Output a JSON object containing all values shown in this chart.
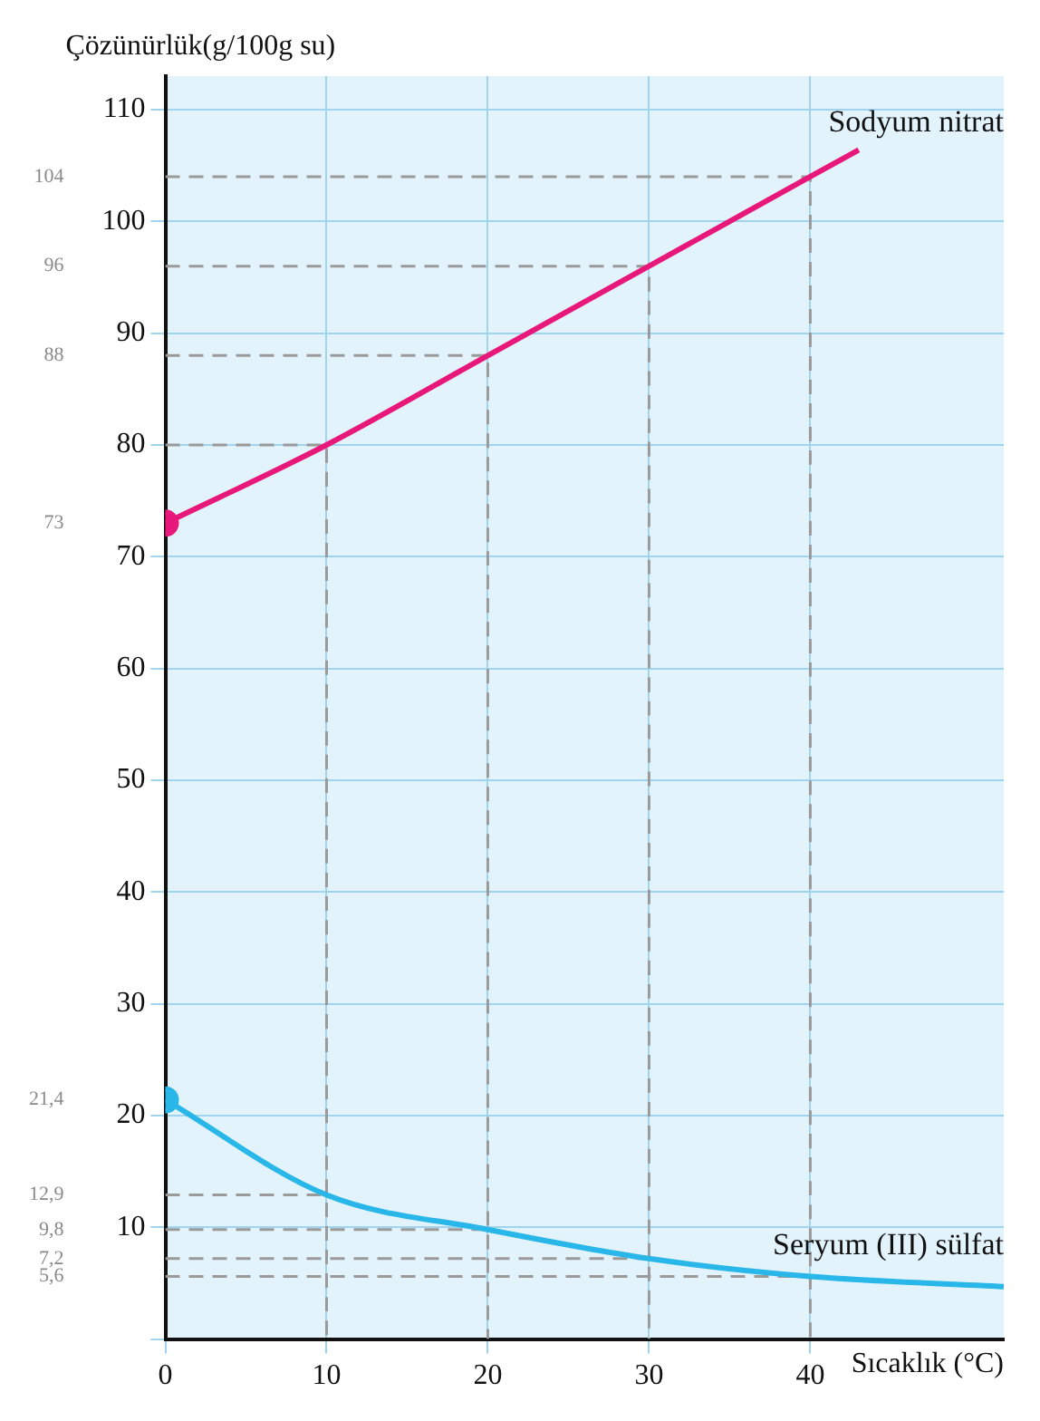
{
  "chart_data": {
    "type": "line",
    "xlabel": "Sıcaklık (°C)",
    "ylabel": "Çözünürlük(g/100g su)",
    "series": [
      {
        "name": "Sodyum nitrat",
        "color": "#e8177a",
        "x": [
          0,
          10,
          20,
          30,
          40,
          43
        ],
        "values": [
          73,
          80,
          88,
          96,
          104,
          106.4
        ]
      },
      {
        "name": "Seryum (III) sülfat",
        "color": "#29b6e8",
        "x": [
          0,
          10,
          20,
          30,
          40,
          52
        ],
        "values": [
          21.4,
          12.9,
          9.8,
          7.2,
          5.6,
          4.7
        ]
      },
      {
        "color": "#9a9a9a",
        "line_style": "dashed",
        "marker": "none",
        "x": [
          0,
          40,
          40,
          null,
          0,
          30,
          30,
          null,
          0,
          20,
          20,
          null,
          0,
          10,
          10,
          null,
          0,
          10,
          null,
          0,
          20,
          null,
          0,
          30,
          null,
          0,
          40
        ],
        "values": [
          104,
          104,
          0,
          null,
          96,
          96,
          0,
          null,
          88,
          88,
          0,
          null,
          80,
          80,
          0,
          null,
          12.9,
          12.9,
          null,
          9.8,
          9.8,
          null,
          7.2,
          7.2,
          null,
          5.6,
          5.6
        ]
      }
    ],
    "xlim": [
      0,
      52
    ],
    "xticks": [
      0,
      10,
      20,
      30,
      40
    ],
    "ylim": [
      0,
      113
    ],
    "yticks": [
      {
        "value": 0,
        "label": null
      },
      10,
      20,
      30,
      40,
      50,
      60,
      70,
      80,
      90,
      100,
      110
    ],
    "y2lim": [
      0,
      113
    ],
    "y2ticks": [
      104,
      96,
      88,
      73,
      {
        "value": 21.4,
        "label": "21,4"
      },
      {
        "value": 12.9,
        "label": "12,9"
      },
      {
        "value": 9.8,
        "label": "9,8"
      },
      {
        "value": 7.2,
        "label": "7,2"
      },
      {
        "value": 5.6,
        "label": "5,6"
      }
    ],
    "grid": true,
    "legend": false
  }
}
